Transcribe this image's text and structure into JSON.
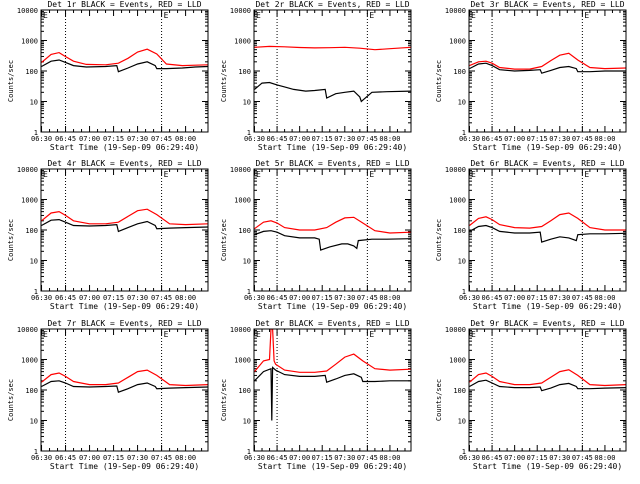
{
  "figure": {
    "xlabel": "Start Time (19-Sep-09 06:29:40)",
    "ylabel": "Counts/sec",
    "colors": {
      "events": "#000000",
      "lld": "#ff0000",
      "axes": "#000000"
    },
    "corner_mark": "E"
  },
  "chart_data": [
    {
      "type": "line",
      "title": "Det 1r BLACK = Events, RED = LLD",
      "x_ticks": [
        "06:30",
        "06:45",
        "07:00",
        "07:15",
        "07:30",
        "07:45",
        "08:00"
      ],
      "y_ticks": [
        "1",
        "10",
        "100",
        "1000",
        "10000"
      ],
      "xlim_minutes": [
        389.67,
        494
      ],
      "ylim": [
        1,
        10000
      ],
      "y_scale": "log",
      "vlines_minutes": [
        405,
        465
      ],
      "series": [
        {
          "role": "events",
          "color": "#000000",
          "x": [
            390,
            396,
            401,
            404,
            410,
            418,
            430,
            437,
            438,
            444,
            450,
            456,
            461,
            462,
            468,
            478,
            486,
            494
          ],
          "y": [
            140,
            210,
            230,
            200,
            150,
            135,
            140,
            150,
            95,
            125,
            170,
            200,
            150,
            120,
            120,
            125,
            135,
            140
          ]
        },
        {
          "role": "lld",
          "color": "#ff0000",
          "x": [
            390,
            396,
            401,
            404,
            410,
            418,
            430,
            438,
            444,
            450,
            456,
            462,
            468,
            478,
            486,
            494
          ],
          "y": [
            190,
            350,
            400,
            320,
            210,
            165,
            160,
            180,
            260,
            420,
            520,
            360,
            170,
            150,
            155,
            160
          ]
        }
      ]
    },
    {
      "type": "line",
      "title": "Det 2r BLACK = Events, RED = LLD",
      "x_ticks": [
        "06:30",
        "06:45",
        "07:00",
        "07:15",
        "07:30",
        "07:45",
        "08:00"
      ],
      "y_ticks": [
        "1",
        "10",
        "100",
        "1000",
        "10000"
      ],
      "xlim_minutes": [
        389.67,
        494
      ],
      "ylim": [
        1,
        10000
      ],
      "y_scale": "log",
      "vlines_minutes": [
        405,
        465
      ],
      "series": [
        {
          "role": "events",
          "color": "#000000",
          "x": [
            390,
            395,
            400,
            405,
            410,
            416,
            424,
            430,
            437,
            438,
            444,
            450,
            456,
            460,
            461,
            468,
            478,
            494
          ],
          "y": [
            25,
            40,
            42,
            35,
            30,
            25,
            22,
            23,
            25,
            13,
            18,
            20,
            22,
            14,
            10,
            20,
            21,
            22
          ]
        },
        {
          "role": "lld",
          "color": "#ff0000",
          "x": [
            390,
            400,
            410,
            420,
            430,
            440,
            450,
            460,
            470,
            480,
            494
          ],
          "y": [
            600,
            640,
            620,
            590,
            570,
            580,
            600,
            560,
            500,
            540,
            600
          ]
        }
      ]
    },
    {
      "type": "line",
      "title": "Det 3r BLACK = Events, RED = LLD",
      "x_ticks": [
        "06:30",
        "06:45",
        "07:00",
        "07:15",
        "07:30",
        "07:45",
        "08:00"
      ],
      "y_ticks": [
        "1",
        "10",
        "100",
        "1000",
        "10000"
      ],
      "xlim_minutes": [
        389.67,
        494
      ],
      "ylim": [
        1,
        10000
      ],
      "y_scale": "log",
      "vlines_minutes": [
        405,
        465
      ],
      "series": [
        {
          "role": "events",
          "color": "#000000",
          "x": [
            390,
            396,
            401,
            405,
            410,
            420,
            430,
            437,
            438,
            444,
            450,
            456,
            461,
            462,
            470,
            480,
            494
          ],
          "y": [
            120,
            170,
            180,
            150,
            110,
            100,
            105,
            110,
            85,
            105,
            130,
            140,
            120,
            95,
            95,
            100,
            100
          ]
        },
        {
          "role": "lld",
          "color": "#ff0000",
          "x": [
            390,
            396,
            401,
            405,
            410,
            420,
            430,
            438,
            444,
            450,
            456,
            462,
            470,
            480,
            494
          ],
          "y": [
            150,
            200,
            210,
            180,
            130,
            115,
            115,
            140,
            220,
            330,
            380,
            230,
            130,
            120,
            125
          ]
        }
      ]
    },
    {
      "type": "line",
      "title": "Det 4r BLACK = Events, RED = LLD",
      "x_ticks": [
        "06:30",
        "06:45",
        "07:00",
        "07:15",
        "07:30",
        "07:45",
        "08:00"
      ],
      "y_ticks": [
        "1",
        "10",
        "100",
        "1000",
        "10000"
      ],
      "xlim_minutes": [
        389.67,
        494
      ],
      "ylim": [
        1,
        10000
      ],
      "y_scale": "log",
      "vlines_minutes": [
        405,
        465
      ],
      "series": [
        {
          "role": "events",
          "color": "#000000",
          "x": [
            390,
            396,
            401,
            405,
            410,
            420,
            430,
            437,
            438,
            444,
            450,
            456,
            461,
            462,
            470,
            480,
            494
          ],
          "y": [
            140,
            210,
            220,
            180,
            140,
            135,
            140,
            150,
            90,
            120,
            160,
            190,
            140,
            110,
            115,
            120,
            125
          ]
        },
        {
          "role": "lld",
          "color": "#ff0000",
          "x": [
            390,
            396,
            401,
            405,
            410,
            420,
            430,
            438,
            444,
            450,
            456,
            462,
            470,
            480,
            494
          ],
          "y": [
            200,
            360,
            400,
            300,
            200,
            160,
            160,
            180,
            280,
            430,
            480,
            320,
            160,
            150,
            160
          ]
        }
      ]
    },
    {
      "type": "line",
      "title": "Det 5r BLACK = Events, RED = LLD",
      "x_ticks": [
        "06:30",
        "06:45",
        "07:00",
        "07:15",
        "07:30",
        "07:45",
        "08:00"
      ],
      "y_ticks": [
        "1",
        "10",
        "100",
        "1000",
        "10000"
      ],
      "xlim_minutes": [
        389.67,
        494
      ],
      "ylim": [
        1,
        10000
      ],
      "y_scale": "log",
      "vlines_minutes": [
        405,
        465
      ],
      "series": [
        {
          "role": "events",
          "color": "#000000",
          "x": [
            390,
            396,
            401,
            405,
            410,
            420,
            430,
            433,
            434,
            440,
            448,
            452,
            456,
            458,
            459,
            468,
            478,
            494
          ],
          "y": [
            70,
            90,
            95,
            85,
            65,
            55,
            55,
            50,
            22,
            28,
            35,
            35,
            30,
            25,
            45,
            50,
            50,
            52
          ]
        },
        {
          "role": "lld",
          "color": "#ff0000",
          "x": [
            390,
            396,
            401,
            405,
            410,
            420,
            430,
            438,
            444,
            450,
            456,
            462,
            470,
            480,
            494
          ],
          "y": [
            110,
            180,
            200,
            170,
            120,
            100,
            100,
            120,
            180,
            250,
            260,
            170,
            95,
            80,
            85
          ]
        }
      ]
    },
    {
      "type": "line",
      "title": "Det 6r BLACK = Events, RED = LLD",
      "x_ticks": [
        "06:30",
        "06:45",
        "07:00",
        "07:15",
        "07:30",
        "07:45",
        "08:00"
      ],
      "y_ticks": [
        "1",
        "10",
        "100",
        "1000",
        "10000"
      ],
      "xlim_minutes": [
        389.67,
        494
      ],
      "ylim": [
        1,
        10000
      ],
      "y_scale": "log",
      "vlines_minutes": [
        405,
        465
      ],
      "series": [
        {
          "role": "events",
          "color": "#000000",
          "x": [
            390,
            396,
            401,
            405,
            410,
            420,
            430,
            437,
            438,
            444,
            450,
            456,
            461,
            462,
            470,
            480,
            494
          ],
          "y": [
            90,
            130,
            140,
            120,
            90,
            80,
            80,
            85,
            40,
            50,
            60,
            55,
            45,
            70,
            75,
            75,
            78
          ]
        },
        {
          "role": "lld",
          "color": "#ff0000",
          "x": [
            390,
            396,
            401,
            405,
            410,
            420,
            430,
            438,
            444,
            450,
            456,
            462,
            470,
            480,
            494
          ],
          "y": [
            140,
            240,
            270,
            220,
            150,
            120,
            115,
            130,
            200,
            320,
            360,
            240,
            120,
            100,
            100
          ]
        }
      ]
    },
    {
      "type": "line",
      "title": "Det 7r BLACK = Events, RED = LLD",
      "x_ticks": [
        "06:30",
        "06:45",
        "07:00",
        "07:15",
        "07:30",
        "07:45",
        "08:00"
      ],
      "y_ticks": [
        "1",
        "10",
        "100",
        "1000",
        "10000"
      ],
      "xlim_minutes": [
        389.67,
        494
      ],
      "ylim": [
        1,
        10000
      ],
      "y_scale": "log",
      "vlines_minutes": [
        405,
        465
      ],
      "series": [
        {
          "role": "events",
          "color": "#000000",
          "x": [
            390,
            396,
            401,
            405,
            410,
            420,
            430,
            437,
            438,
            444,
            450,
            456,
            461,
            462,
            470,
            480,
            494
          ],
          "y": [
            130,
            190,
            200,
            170,
            130,
            125,
            130,
            135,
            85,
            110,
            150,
            170,
            130,
            110,
            115,
            120,
            125
          ]
        },
        {
          "role": "lld",
          "color": "#ff0000",
          "x": [
            390,
            396,
            401,
            405,
            410,
            420,
            430,
            438,
            444,
            450,
            456,
            462,
            470,
            480,
            494
          ],
          "y": [
            180,
            320,
            360,
            280,
            190,
            150,
            150,
            170,
            260,
            400,
            450,
            300,
            150,
            140,
            150
          ]
        }
      ]
    },
    {
      "type": "line",
      "title": "Det 8r BLACK = Events, RED = LLD",
      "x_ticks": [
        "06:30",
        "06:45",
        "07:00",
        "07:15",
        "07:30",
        "07:45",
        "08:00"
      ],
      "y_ticks": [
        "1",
        "10",
        "100",
        "1000",
        "10000"
      ],
      "xlim_minutes": [
        389.67,
        494
      ],
      "ylim": [
        1,
        10000
      ],
      "y_scale": "log",
      "vlines_minutes": [
        405,
        465
      ],
      "series": [
        {
          "role": "events",
          "color": "#000000",
          "x": [
            390,
            396,
            401,
            401.5,
            402,
            404,
            410,
            420,
            430,
            437,
            438,
            444,
            450,
            456,
            461,
            462,
            470,
            480,
            494
          ],
          "y": [
            200,
            400,
            500,
            10,
            550,
            450,
            320,
            280,
            280,
            300,
            180,
            230,
            300,
            340,
            260,
            190,
            190,
            200,
            200
          ]
        },
        {
          "role": "lld",
          "color": "#ff0000",
          "x": [
            390,
            396,
            400,
            401,
            402,
            403,
            404,
            410,
            420,
            430,
            438,
            444,
            450,
            456,
            462,
            470,
            480,
            494
          ],
          "y": [
            400,
            900,
            1000,
            10000,
            10000,
            900,
            700,
            450,
            380,
            380,
            420,
            700,
            1200,
            1500,
            900,
            500,
            450,
            480
          ]
        }
      ]
    },
    {
      "type": "line",
      "title": "Det 9r BLACK = Events, RED = LLD",
      "x_ticks": [
        "06:30",
        "06:45",
        "07:00",
        "07:15",
        "07:30",
        "07:45",
        "08:00"
      ],
      "y_ticks": [
        "1",
        "10",
        "100",
        "1000",
        "10000"
      ],
      "xlim_minutes": [
        389.67,
        494
      ],
      "ylim": [
        1,
        10000
      ],
      "y_scale": "log",
      "vlines_minutes": [
        405,
        465
      ],
      "series": [
        {
          "role": "events",
          "color": "#000000",
          "x": [
            390,
            396,
            401,
            405,
            410,
            420,
            430,
            437,
            438,
            444,
            450,
            456,
            461,
            462,
            470,
            480,
            494
          ],
          "y": [
            130,
            190,
            210,
            170,
            130,
            120,
            120,
            125,
            95,
            115,
            150,
            165,
            130,
            110,
            110,
            115,
            120
          ]
        },
        {
          "role": "lld",
          "color": "#ff0000",
          "x": [
            390,
            396,
            401,
            405,
            410,
            420,
            430,
            438,
            444,
            450,
            456,
            462,
            470,
            480,
            494
          ],
          "y": [
            180,
            320,
            360,
            280,
            190,
            150,
            150,
            170,
            260,
            400,
            460,
            300,
            150,
            140,
            150
          ]
        }
      ]
    }
  ]
}
